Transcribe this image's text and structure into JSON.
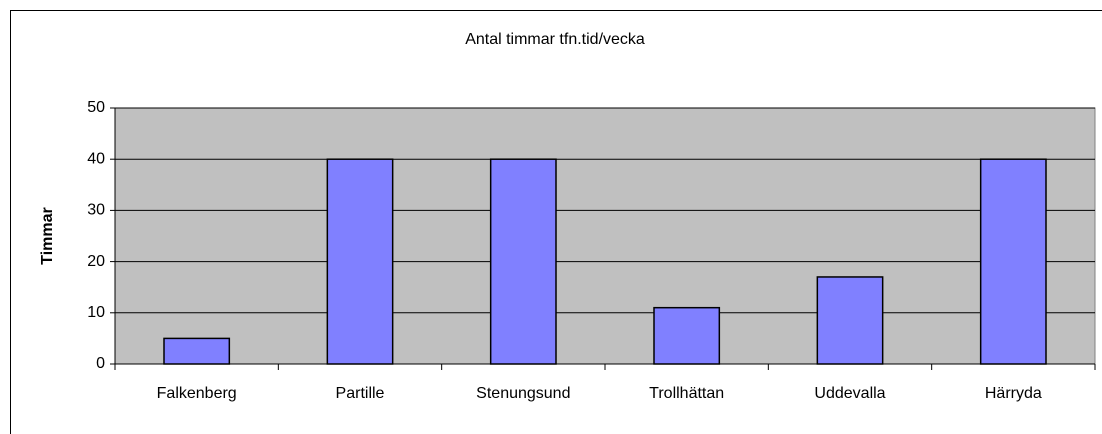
{
  "chart_data": {
    "type": "bar",
    "title": "Antal timmar tfn.tid/vecka",
    "y_label": "Timmar",
    "categories": [
      "Falkenberg",
      "Partille",
      "Stenungsund",
      "Trollhättan",
      "Uddevalla",
      "Härryda"
    ],
    "values": [
      5,
      40,
      40,
      11,
      17,
      40
    ],
    "color": "#8080ff",
    "ylim": [
      0,
      50
    ],
    "yticks": [
      0,
      10,
      20,
      30,
      40,
      50
    ],
    "grid": true
  }
}
